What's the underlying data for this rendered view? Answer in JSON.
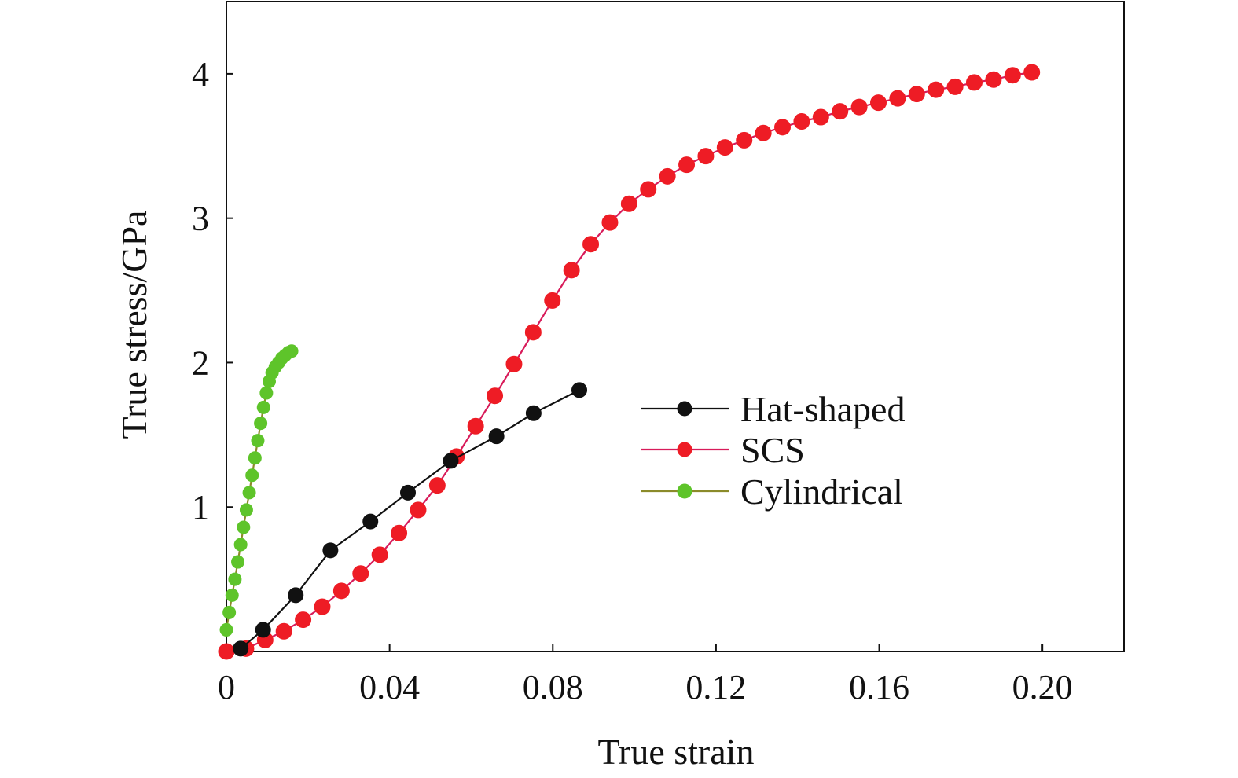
{
  "chart_data": {
    "type": "line",
    "title": "",
    "xlabel": "True strain",
    "ylabel": "True stress/GPa",
    "xlim": [
      0,
      0.22
    ],
    "ylim": [
      0,
      4.5
    ],
    "x_ticks": [
      {
        "value": 0,
        "label": "0"
      },
      {
        "value": 0.04,
        "label": "0.04"
      },
      {
        "value": 0.08,
        "label": "0.08"
      },
      {
        "value": 0.12,
        "label": "0.12"
      },
      {
        "value": 0.16,
        "label": "0.16"
      },
      {
        "value": 0.2,
        "label": "0.20"
      }
    ],
    "y_ticks": [
      {
        "value": 1,
        "label": "1"
      },
      {
        "value": 2,
        "label": "2"
      },
      {
        "value": 3,
        "label": "3"
      },
      {
        "value": 4,
        "label": "4"
      }
    ],
    "grid": false,
    "legend_position": "center-right",
    "series": [
      {
        "name": "Hat-shaped",
        "color": "#111111",
        "marker_color": "#111111",
        "x": [
          0.0035,
          0.009,
          0.017,
          0.0255,
          0.0353,
          0.0445,
          0.055,
          0.0662,
          0.0753,
          0.0865
        ],
        "y": [
          0.02,
          0.15,
          0.39,
          0.7,
          0.9,
          1.1,
          1.32,
          1.49,
          1.65,
          1.81
        ]
      },
      {
        "name": "SCS",
        "color": "#d81b5a",
        "marker_color": "#ee1c25",
        "x": [
          0.0,
          0.0048,
          0.0095,
          0.0141,
          0.0188,
          0.0235,
          0.0282,
          0.0329,
          0.0376,
          0.0423,
          0.047,
          0.0517,
          0.0564,
          0.0611,
          0.0658,
          0.0705,
          0.0752,
          0.0799,
          0.0846,
          0.0893,
          0.094,
          0.0987,
          0.1034,
          0.1081,
          0.1128,
          0.1175,
          0.1222,
          0.1269,
          0.1316,
          0.1363,
          0.141,
          0.1457,
          0.1504,
          0.1551,
          0.1598,
          0.1645,
          0.1692,
          0.1739,
          0.1786,
          0.1833,
          0.188,
          0.1927,
          0.1974
        ],
        "y": [
          0.0,
          0.02,
          0.08,
          0.14,
          0.22,
          0.31,
          0.42,
          0.54,
          0.67,
          0.82,
          0.98,
          1.15,
          1.35,
          1.56,
          1.77,
          1.99,
          2.21,
          2.43,
          2.64,
          2.82,
          2.97,
          3.1,
          3.2,
          3.29,
          3.37,
          3.43,
          3.49,
          3.54,
          3.59,
          3.63,
          3.67,
          3.7,
          3.74,
          3.77,
          3.8,
          3.83,
          3.86,
          3.89,
          3.91,
          3.94,
          3.96,
          3.99,
          4.01
        ]
      },
      {
        "name": "Cylindrical",
        "color": "#8b8b2a",
        "marker_color": "#5ec42a",
        "x": [
          0.0,
          0.0007,
          0.0014,
          0.0021,
          0.0028,
          0.0035,
          0.0042,
          0.0049,
          0.0056,
          0.0063,
          0.007,
          0.0077,
          0.0084,
          0.0091,
          0.0098,
          0.0105,
          0.0112,
          0.012,
          0.0128,
          0.0136,
          0.0144,
          0.0152,
          0.016
        ],
        "y": [
          0.15,
          0.27,
          0.39,
          0.5,
          0.62,
          0.74,
          0.86,
          0.98,
          1.1,
          1.22,
          1.34,
          1.46,
          1.58,
          1.69,
          1.79,
          1.87,
          1.93,
          1.97,
          2.0,
          2.03,
          2.05,
          2.07,
          2.08
        ]
      }
    ]
  }
}
